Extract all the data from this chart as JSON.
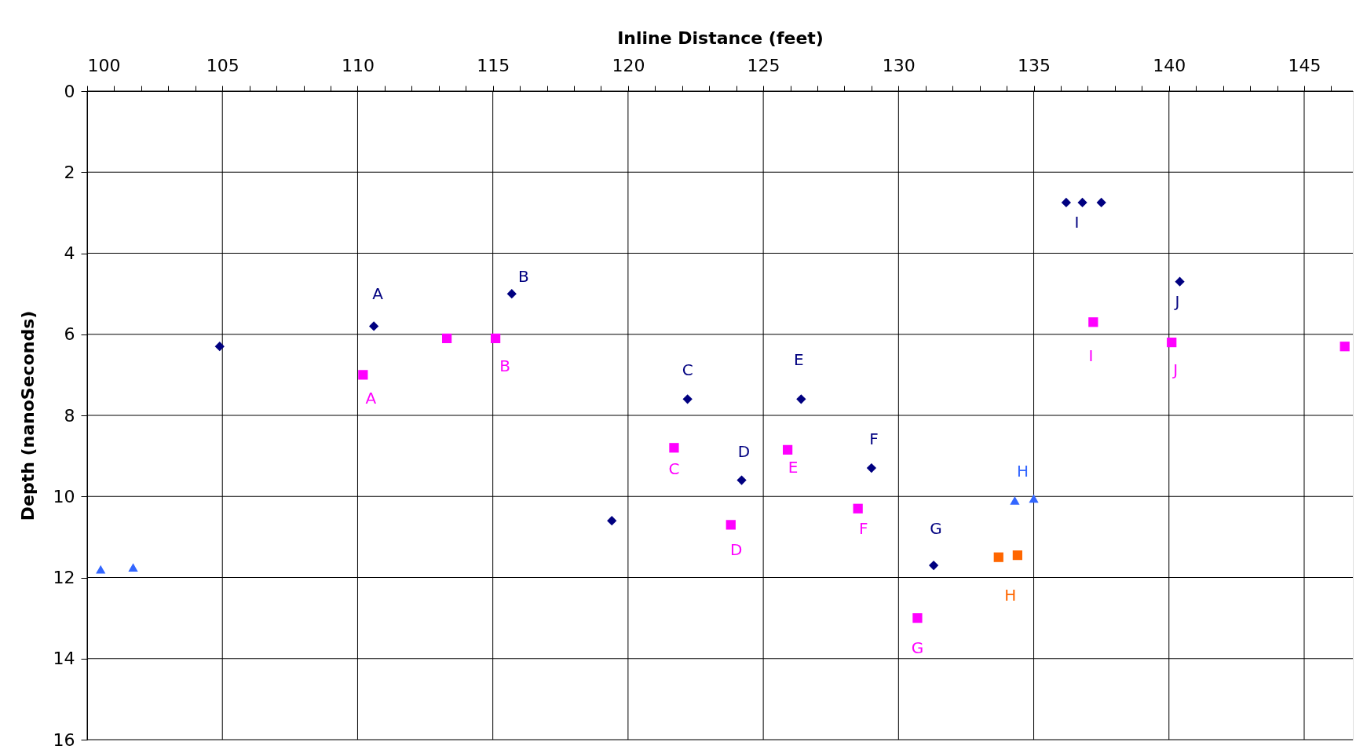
{
  "chart_data": {
    "type": "scatter",
    "xlabel": "Inline Distance (feet)",
    "ylabel": "Depth (nanoSeconds)",
    "xlim": [
      100,
      146.8
    ],
    "ylim": [
      16,
      0
    ],
    "xticks": [
      100,
      {
        "value": 101,
        "label": null
      },
      {
        "value": 102,
        "label": null
      },
      {
        "value": 103,
        "label": null
      },
      {
        "value": 104,
        "label": null
      },
      105,
      {
        "value": 106,
        "label": null
      },
      {
        "value": 107,
        "label": null
      },
      {
        "value": 108,
        "label": null
      },
      {
        "value": 109,
        "label": null
      },
      110,
      {
        "value": 111,
        "label": null
      },
      {
        "value": 112,
        "label": null
      },
      {
        "value": 113,
        "label": null
      },
      {
        "value": 114,
        "label": null
      },
      115,
      {
        "value": 116,
        "label": null
      },
      {
        "value": 117,
        "label": null
      },
      {
        "value": 118,
        "label": null
      },
      {
        "value": 119,
        "label": null
      },
      120,
      {
        "value": 121,
        "label": null
      },
      {
        "value": 122,
        "label": null
      },
      {
        "value": 123,
        "label": null
      },
      {
        "value": 124,
        "label": null
      },
      125,
      {
        "value": 126,
        "label": null
      },
      {
        "value": 127,
        "label": null
      },
      {
        "value": 128,
        "label": null
      },
      {
        "value": 129,
        "label": null
      },
      130,
      {
        "value": 131,
        "label": null
      },
      {
        "value": 132,
        "label": null
      },
      {
        "value": 133,
        "label": null
      },
      {
        "value": 134,
        "label": null
      },
      135,
      {
        "value": 136,
        "label": null
      },
      {
        "value": 137,
        "label": null
      },
      {
        "value": 138,
        "label": null
      },
      {
        "value": 139,
        "label": null
      },
      140,
      {
        "value": 141,
        "label": null
      },
      {
        "value": 142,
        "label": null
      },
      {
        "value": 143,
        "label": null
      },
      {
        "value": 144,
        "label": null
      },
      145,
      {
        "value": 146,
        "label": null
      }
    ],
    "yticks": [
      0,
      2,
      4,
      6,
      8,
      10,
      12,
      14,
      16
    ],
    "grid": true,
    "series": [
      {
        "color": "#000080",
        "marker": "diamond",
        "x": [
          104.9,
          110.6,
          115.7,
          119.4,
          122.2,
          124.2,
          126.4,
          129.0,
          131.3,
          136.2,
          136.8,
          137.5,
          140.4
        ],
        "values": [
          6.3,
          5.8,
          5.0,
          10.6,
          7.6,
          9.6,
          7.6,
          9.3,
          11.7,
          2.75,
          2.75,
          2.75,
          4.7
        ]
      },
      {
        "color": "#ff00ff",
        "marker": "square",
        "x": [
          110.2,
          113.3,
          115.1,
          121.7,
          123.8,
          125.9,
          128.5,
          130.7,
          137.2,
          140.1,
          146.5
        ],
        "values": [
          7.0,
          6.1,
          6.1,
          8.8,
          10.7,
          8.85,
          10.3,
          13.0,
          5.7,
          6.2,
          6.3
        ]
      },
      {
        "color": "#3366ff",
        "marker": "triangle",
        "x": [
          100.5,
          101.7,
          134.3,
          135.0
        ],
        "values": [
          11.8,
          11.75,
          10.1,
          10.05
        ]
      },
      {
        "color": "#ff6600",
        "marker": "square",
        "x": [
          133.7,
          134.4
        ],
        "values": [
          11.5,
          11.45
        ]
      }
    ],
    "annotations": [
      {
        "text": "A",
        "x": 110.6,
        "y": 5.8
      },
      {
        "text": "B",
        "x": 115.7,
        "y": 5.0
      },
      {
        "text": "C",
        "x": 122.2,
        "y": 7.6
      },
      {
        "text": "D",
        "x": 124.2,
        "y": 9.6
      },
      {
        "text": "E",
        "x": 126.4,
        "y": 7.6
      },
      {
        "text": "F",
        "x": 129.0,
        "y": 9.3
      },
      {
        "text": "G",
        "x": 131.3,
        "y": 11.7
      },
      {
        "text": "H",
        "x": 134.3,
        "y": 10.1
      },
      {
        "text": "I",
        "x": 136.8,
        "y": 2.75
      },
      {
        "text": "J",
        "x": 140.4,
        "y": 4.7
      },
      {
        "text": "A",
        "x": 110.2,
        "y": 7.0
      },
      {
        "text": "B",
        "x": 115.1,
        "y": 6.1
      },
      {
        "text": "C",
        "x": 121.7,
        "y": 8.8
      },
      {
        "text": "D",
        "x": 123.8,
        "y": 10.7
      },
      {
        "text": "E",
        "x": 125.9,
        "y": 8.85
      },
      {
        "text": "F",
        "x": 128.5,
        "y": 10.3
      },
      {
        "text": "G",
        "x": 130.7,
        "y": 13.0
      },
      {
        "text": "I",
        "x": 137.2,
        "y": 5.7
      },
      {
        "text": "J",
        "x": 140.1,
        "y": 6.2
      },
      {
        "text": "H",
        "x": 133.7,
        "y": 11.5
      }
    ]
  }
}
